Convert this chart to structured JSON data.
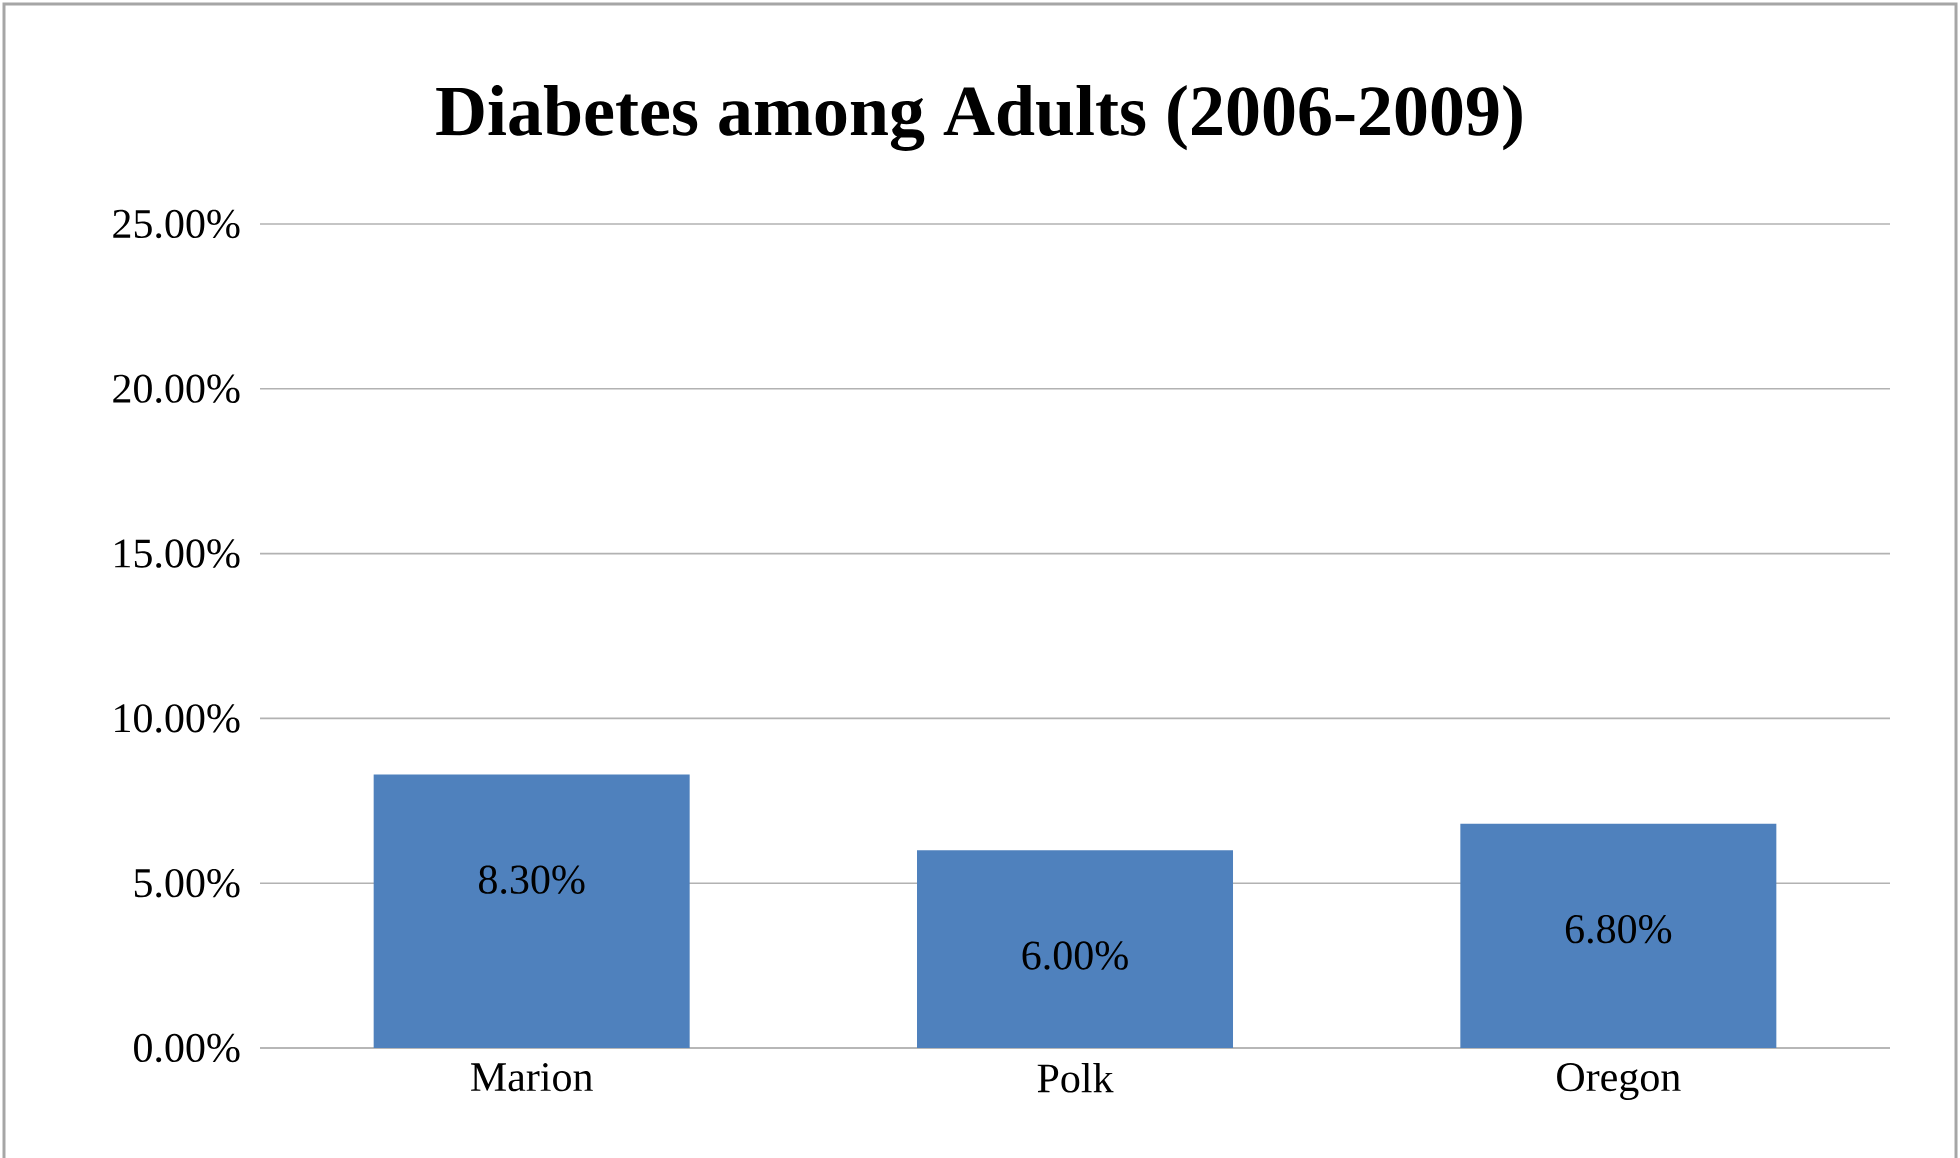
{
  "chart_data": {
    "type": "bar",
    "title": "Diabetes among Adults (2006-2009)",
    "categories": [
      "Marion",
      "Polk",
      "Oregon"
    ],
    "values": [
      8.3,
      6.0,
      6.8
    ],
    "value_labels": [
      "8.30%",
      "6.00%",
      "6.80%"
    ],
    "color": "#4f81bd",
    "ylim": [
      0,
      25
    ],
    "yticks": [
      {
        "value": 0,
        "label": "0.00%"
      },
      {
        "value": 5,
        "label": "5.00%"
      },
      {
        "value": 10,
        "label": "10.00%"
      },
      {
        "value": 15,
        "label": "15.00%"
      },
      {
        "value": 20,
        "label": "20.00%"
      },
      {
        "value": 25,
        "label": "25.00%"
      }
    ],
    "grid": "y"
  }
}
